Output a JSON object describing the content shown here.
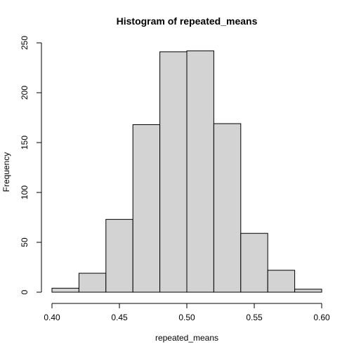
{
  "chart_data": {
    "type": "bar",
    "title": "Histogram of repeated_means",
    "xlabel": "repeated_means",
    "ylabel": "Frequency",
    "bin_edges": [
      0.4,
      0.42,
      0.44,
      0.46,
      0.48,
      0.5,
      0.52,
      0.54,
      0.56,
      0.58,
      0.6
    ],
    "values": [
      4,
      19,
      73,
      168,
      241,
      242,
      169,
      59,
      22,
      3
    ],
    "xlim": [
      0.4,
      0.6
    ],
    "ylim": [
      0,
      250
    ],
    "x_ticks": [
      0.4,
      0.45,
      0.5,
      0.55,
      0.6
    ],
    "x_tick_labels": [
      "0.40",
      "0.45",
      "0.50",
      "0.55",
      "0.60"
    ],
    "y_ticks": [
      0,
      50,
      100,
      150,
      200,
      250
    ],
    "y_tick_labels": [
      "0",
      "50",
      "100",
      "150",
      "200",
      "250"
    ],
    "bar_fill": "#d3d3d3",
    "bar_stroke": "#000000",
    "grid": false
  }
}
